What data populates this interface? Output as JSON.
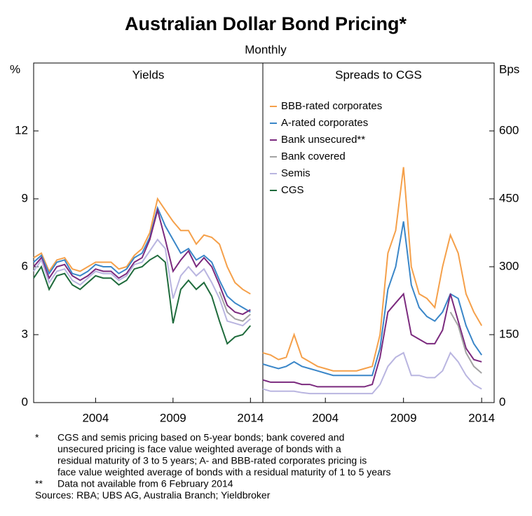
{
  "title": "Australian Dollar Bond Pricing*",
  "subtitle": "Monthly",
  "chart_data": [
    {
      "type": "line",
      "title": "Yields",
      "y_label": "%",
      "x": [
        2000,
        2000.5,
        2001,
        2001.5,
        2002,
        2002.5,
        2003,
        2003.5,
        2004,
        2004.5,
        2005,
        2005.5,
        2006,
        2006.5,
        2007,
        2007.5,
        2008,
        2008.5,
        2009,
        2009.5,
        2010,
        2010.5,
        2011,
        2011.5,
        2012,
        2012.5,
        2013,
        2013.5,
        2014
      ],
      "xlim": [
        2000,
        2014.8
      ],
      "xticks": [
        2004,
        2009,
        2014
      ],
      "ylim": [
        0,
        15
      ],
      "yticks": [
        0,
        3,
        6,
        9,
        12
      ],
      "series": [
        {
          "color": "#f5a04a",
          "values": [
            6.4,
            6.6,
            5.8,
            6.3,
            6.4,
            5.9,
            5.8,
            6.0,
            6.2,
            6.2,
            6.2,
            5.9,
            6.0,
            6.5,
            6.8,
            7.5,
            9.0,
            8.5,
            8.0,
            7.6,
            7.6,
            7.0,
            7.4,
            7.3,
            7.0,
            6.0,
            5.3,
            5.0,
            4.8
          ]
        },
        {
          "color": "#3a86c8",
          "values": [
            6.2,
            6.5,
            5.7,
            6.2,
            6.3,
            5.7,
            5.6,
            5.8,
            6.1,
            6.0,
            6.0,
            5.7,
            5.9,
            6.4,
            6.6,
            7.3,
            8.6,
            7.8,
            7.2,
            6.6,
            6.8,
            6.3,
            6.5,
            6.2,
            5.4,
            4.7,
            4.4,
            4.2,
            4.0
          ]
        },
        {
          "color": "#7b2a7e",
          "values": [
            6.0,
            6.4,
            5.5,
            6.0,
            6.1,
            5.6,
            5.4,
            5.6,
            5.9,
            5.8,
            5.8,
            5.5,
            5.7,
            6.2,
            6.4,
            7.2,
            8.5,
            7.2,
            5.8,
            6.3,
            6.7,
            6.0,
            6.4,
            6.0,
            5.2,
            4.3,
            4.0,
            3.9,
            4.1
          ]
        },
        {
          "color": "#a3a3a3",
          "values": [
            null,
            null,
            null,
            null,
            null,
            null,
            null,
            null,
            null,
            null,
            null,
            null,
            null,
            null,
            null,
            null,
            null,
            null,
            null,
            null,
            null,
            null,
            null,
            null,
            4.9,
            4.0,
            3.7,
            3.6,
            3.9
          ]
        },
        {
          "color": "#b9b5e0",
          "values": [
            5.8,
            6.3,
            5.3,
            5.8,
            5.9,
            5.4,
            5.2,
            5.5,
            5.8,
            5.7,
            5.7,
            5.4,
            5.6,
            6.1,
            6.2,
            6.7,
            7.2,
            6.8,
            4.6,
            5.6,
            6.0,
            5.6,
            5.9,
            5.3,
            4.6,
            3.6,
            3.5,
            3.4,
            3.7
          ]
        },
        {
          "color": "#1f6b3c",
          "values": [
            5.5,
            6.0,
            5.0,
            5.6,
            5.7,
            5.2,
            5.0,
            5.3,
            5.6,
            5.5,
            5.5,
            5.2,
            5.4,
            5.9,
            6.0,
            6.3,
            6.5,
            6.2,
            3.5,
            5.0,
            5.4,
            5.0,
            5.3,
            4.7,
            3.6,
            2.6,
            2.9,
            3.0,
            3.4
          ]
        }
      ]
    },
    {
      "type": "line",
      "title": "Spreads to CGS",
      "y_label": "Bps",
      "legend": "upper left",
      "x": [
        2000,
        2000.5,
        2001,
        2001.5,
        2002,
        2002.5,
        2003,
        2003.5,
        2004,
        2004.5,
        2005,
        2005.5,
        2006,
        2006.5,
        2007,
        2007.5,
        2008,
        2008.5,
        2009,
        2009.5,
        2010,
        2010.5,
        2011,
        2011.5,
        2012,
        2012.5,
        2013,
        2013.5,
        2014
      ],
      "xlim": [
        2000,
        2014.8
      ],
      "xticks": [
        2004,
        2009,
        2014
      ],
      "ylim": [
        0,
        750
      ],
      "yticks": [
        0,
        150,
        300,
        450,
        600
      ],
      "series": [
        {
          "name": "BBB-rated corporates",
          "color": "#f5a04a",
          "values": [
            110,
            105,
            95,
            100,
            150,
            100,
            90,
            80,
            75,
            70,
            70,
            70,
            70,
            75,
            80,
            150,
            330,
            380,
            520,
            300,
            240,
            230,
            210,
            300,
            370,
            330,
            240,
            200,
            170
          ]
        },
        {
          "name": "A-rated corporates",
          "color": "#3a86c8",
          "values": [
            85,
            80,
            75,
            80,
            90,
            80,
            75,
            70,
            65,
            60,
            60,
            60,
            60,
            60,
            60,
            120,
            250,
            300,
            400,
            260,
            210,
            190,
            180,
            200,
            240,
            230,
            170,
            130,
            105
          ]
        },
        {
          "name": "Bank unsecured**",
          "color": "#7b2a7e",
          "values": [
            50,
            45,
            45,
            45,
            45,
            40,
            40,
            35,
            35,
            35,
            35,
            35,
            35,
            35,
            40,
            100,
            200,
            220,
            240,
            150,
            140,
            130,
            130,
            160,
            240,
            180,
            120,
            95,
            90
          ]
        },
        {
          "name": "Bank covered",
          "color": "#a3a3a3",
          "values": [
            null,
            null,
            null,
            null,
            null,
            null,
            null,
            null,
            null,
            null,
            null,
            null,
            null,
            null,
            null,
            null,
            null,
            null,
            null,
            null,
            null,
            null,
            null,
            null,
            200,
            170,
            110,
            80,
            65
          ]
        },
        {
          "name": "Semis",
          "color": "#b9b5e0",
          "values": [
            30,
            25,
            25,
            25,
            25,
            22,
            20,
            20,
            20,
            20,
            20,
            20,
            20,
            20,
            20,
            40,
            80,
            100,
            110,
            60,
            60,
            55,
            55,
            70,
            110,
            90,
            60,
            40,
            30
          ]
        },
        {
          "name": "CGS",
          "color": "#1f6b3c",
          "values": [
            null,
            null,
            null,
            null,
            null,
            null,
            null,
            null,
            null,
            null,
            null,
            null,
            null,
            null,
            null,
            null,
            null,
            null,
            null,
            null,
            null,
            null,
            null,
            null,
            null,
            null,
            null,
            null,
            null
          ]
        }
      ]
    }
  ],
  "notes": [
    {
      "marker": "*",
      "lines": [
        "CGS and semis pricing based on 5-year bonds; bank covered and",
        "unsecured pricing is face value weighted average of bonds with a",
        "residual maturity of 3 to 5 years; A- and BBB-rated corporates pricing is",
        "face value weighted average of bonds with a residual maturity of 1 to 5 years"
      ]
    },
    {
      "marker": "**",
      "lines": [
        "Data not available from 6 February 2014"
      ]
    }
  ],
  "sources": "Sources: RBA; UBS AG, Australia Branch; Yieldbroker"
}
